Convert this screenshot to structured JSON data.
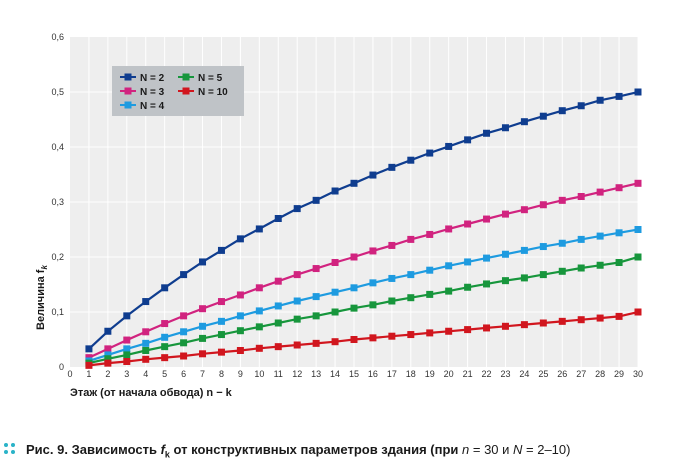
{
  "chart_data": {
    "type": "line",
    "x": [
      0,
      1,
      2,
      3,
      4,
      5,
      6,
      7,
      8,
      9,
      10,
      11,
      12,
      13,
      14,
      15,
      16,
      17,
      18,
      19,
      20,
      21,
      22,
      23,
      24,
      25,
      26,
      27,
      28,
      29,
      30
    ],
    "x_tick_labels": [
      "0",
      "1",
      "2",
      "3",
      "4",
      "5",
      "6",
      "7",
      "8",
      "9",
      "10",
      "11",
      "12",
      "13",
      "14",
      "15",
      "16",
      "17",
      "18",
      "19",
      "20",
      "21",
      "22",
      "23",
      "24",
      "25",
      "26",
      "27",
      "28",
      "29",
      "30"
    ],
    "y_tick_labels": [
      "0",
      "0,1",
      "0,2",
      "0,3",
      "0,4",
      "0,5",
      "0,6"
    ],
    "xlim": [
      0,
      30
    ],
    "ylim": [
      0,
      0.6
    ],
    "grid": true,
    "xlabel": "Этаж (от начала обвода) n − k",
    "ylabel": "Величина f",
    "ylabel_sub": "k",
    "legend_position": "top-left",
    "series": [
      {
        "name": "N = 2",
        "color": "#0f3d8f",
        "points": [
          [
            1,
            0.033
          ],
          [
            2,
            0.065
          ],
          [
            3,
            0.093
          ],
          [
            4,
            0.119
          ],
          [
            5,
            0.144
          ],
          [
            6,
            0.168
          ],
          [
            7,
            0.191
          ],
          [
            8,
            0.212
          ],
          [
            9,
            0.233
          ],
          [
            10,
            0.251
          ],
          [
            11,
            0.27
          ],
          [
            12,
            0.288
          ],
          [
            13,
            0.303
          ],
          [
            14,
            0.32
          ],
          [
            15,
            0.334
          ],
          [
            16,
            0.349
          ],
          [
            17,
            0.363
          ],
          [
            18,
            0.376
          ],
          [
            19,
            0.389
          ],
          [
            20,
            0.401
          ],
          [
            21,
            0.413
          ],
          [
            22,
            0.425
          ],
          [
            23,
            0.435
          ],
          [
            24,
            0.446
          ],
          [
            25,
            0.456
          ],
          [
            26,
            0.466
          ],
          [
            27,
            0.475
          ],
          [
            28,
            0.485
          ],
          [
            29,
            0.492
          ],
          [
            30,
            0.5
          ]
        ]
      },
      {
        "name": "N = 3",
        "color": "#d1237f",
        "points": [
          [
            1,
            0.017
          ],
          [
            2,
            0.033
          ],
          [
            3,
            0.049
          ],
          [
            4,
            0.064
          ],
          [
            5,
            0.079
          ],
          [
            6,
            0.093
          ],
          [
            7,
            0.106
          ],
          [
            8,
            0.119
          ],
          [
            9,
            0.131
          ],
          [
            10,
            0.144
          ],
          [
            11,
            0.156
          ],
          [
            12,
            0.168
          ],
          [
            13,
            0.179
          ],
          [
            14,
            0.19
          ],
          [
            15,
            0.2
          ],
          [
            16,
            0.211
          ],
          [
            17,
            0.221
          ],
          [
            18,
            0.232
          ],
          [
            19,
            0.241
          ],
          [
            20,
            0.251
          ],
          [
            21,
            0.26
          ],
          [
            22,
            0.269
          ],
          [
            23,
            0.278
          ],
          [
            24,
            0.286
          ],
          [
            25,
            0.295
          ],
          [
            26,
            0.303
          ],
          [
            27,
            0.31
          ],
          [
            28,
            0.318
          ],
          [
            29,
            0.326
          ],
          [
            30,
            0.334
          ]
        ]
      },
      {
        "name": "N = 4",
        "color": "#1e9be0",
        "points": [
          [
            1,
            0.011
          ],
          [
            2,
            0.022
          ],
          [
            3,
            0.033
          ],
          [
            4,
            0.043
          ],
          [
            5,
            0.054
          ],
          [
            6,
            0.064
          ],
          [
            7,
            0.074
          ],
          [
            8,
            0.083
          ],
          [
            9,
            0.093
          ],
          [
            10,
            0.102
          ],
          [
            11,
            0.111
          ],
          [
            12,
            0.12
          ],
          [
            13,
            0.128
          ],
          [
            14,
            0.136
          ],
          [
            15,
            0.144
          ],
          [
            16,
            0.153
          ],
          [
            17,
            0.161
          ],
          [
            18,
            0.168
          ],
          [
            19,
            0.176
          ],
          [
            20,
            0.184
          ],
          [
            21,
            0.191
          ],
          [
            22,
            0.198
          ],
          [
            23,
            0.205
          ],
          [
            24,
            0.212
          ],
          [
            25,
            0.219
          ],
          [
            26,
            0.225
          ],
          [
            27,
            0.232
          ],
          [
            28,
            0.238
          ],
          [
            29,
            0.244
          ],
          [
            30,
            0.25
          ]
        ]
      },
      {
        "name": "N = 5",
        "color": "#17963c",
        "points": [
          [
            1,
            0.007
          ],
          [
            2,
            0.015
          ],
          [
            3,
            0.022
          ],
          [
            4,
            0.03
          ],
          [
            5,
            0.037
          ],
          [
            6,
            0.044
          ],
          [
            7,
            0.052
          ],
          [
            8,
            0.059
          ],
          [
            9,
            0.066
          ],
          [
            10,
            0.073
          ],
          [
            11,
            0.08
          ],
          [
            12,
            0.087
          ],
          [
            13,
            0.093
          ],
          [
            14,
            0.1
          ],
          [
            15,
            0.107
          ],
          [
            16,
            0.113
          ],
          [
            17,
            0.12
          ],
          [
            18,
            0.126
          ],
          [
            19,
            0.132
          ],
          [
            20,
            0.138
          ],
          [
            21,
            0.145
          ],
          [
            22,
            0.151
          ],
          [
            23,
            0.157
          ],
          [
            24,
            0.162
          ],
          [
            25,
            0.168
          ],
          [
            26,
            0.174
          ],
          [
            27,
            0.18
          ],
          [
            28,
            0.185
          ],
          [
            29,
            0.19
          ],
          [
            30,
            0.2
          ]
        ]
      },
      {
        "name": "N = 10",
        "color": "#d1161e",
        "points": [
          [
            1,
            0.003
          ],
          [
            2,
            0.007
          ],
          [
            3,
            0.01
          ],
          [
            4,
            0.014
          ],
          [
            5,
            0.017
          ],
          [
            6,
            0.02
          ],
          [
            7,
            0.024
          ],
          [
            8,
            0.027
          ],
          [
            9,
            0.03
          ],
          [
            10,
            0.034
          ],
          [
            11,
            0.037
          ],
          [
            12,
            0.04
          ],
          [
            13,
            0.043
          ],
          [
            14,
            0.046
          ],
          [
            15,
            0.05
          ],
          [
            16,
            0.053
          ],
          [
            17,
            0.056
          ],
          [
            18,
            0.059
          ],
          [
            19,
            0.062
          ],
          [
            20,
            0.065
          ],
          [
            21,
            0.068
          ],
          [
            22,
            0.071
          ],
          [
            23,
            0.074
          ],
          [
            24,
            0.077
          ],
          [
            25,
            0.08
          ],
          [
            26,
            0.083
          ],
          [
            27,
            0.086
          ],
          [
            28,
            0.089
          ],
          [
            29,
            0.092
          ],
          [
            30,
            0.1
          ]
        ]
      }
    ]
  },
  "caption": {
    "label": "Рис. 9.",
    "text_before": " Зависимость ",
    "fk": "f",
    "fk_sub": "k",
    "text_after": " от конструктивных параметров здания (при ",
    "n_var": "n",
    "n_value": " = 30 и ",
    "N_var": "N",
    "N_value": " = 2–10)"
  }
}
